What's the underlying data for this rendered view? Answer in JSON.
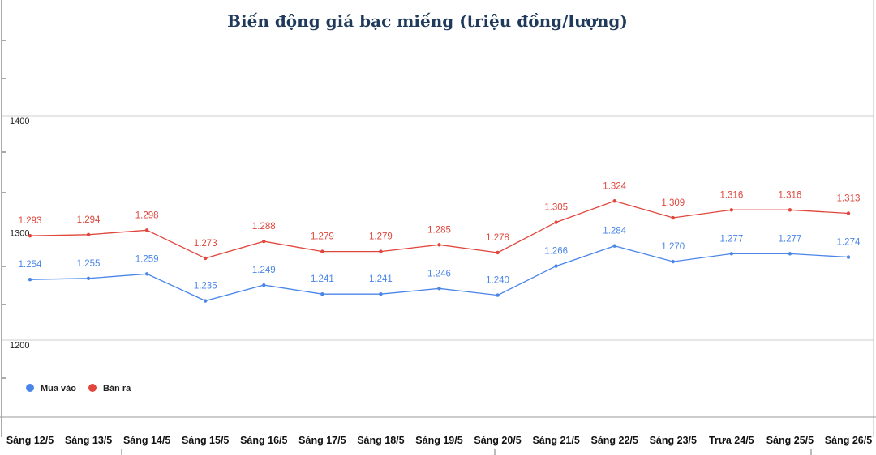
{
  "chart_data": {
    "type": "line",
    "title": "Biến động giá bạc miếng (triệu đồng/lượng)",
    "categories": [
      "Sáng 12/5",
      "Sáng 13/5",
      "Sáng 14/5",
      "Sáng 15/5",
      "Sáng 16/5",
      "Sáng 17/5",
      "Sáng 18/5",
      "Sáng 19/5",
      "Sáng 20/5",
      "Sáng 21/5",
      "Sáng 22/5",
      "Sáng 23/5",
      "Trưa 24/5",
      "Sáng 25/5",
      "Sáng 26/5"
    ],
    "series": [
      {
        "name": "Mua vào",
        "color": "#4a86e8",
        "values": [
          1254,
          1255,
          1259,
          1235,
          1249,
          1241,
          1241,
          1246,
          1240,
          1266,
          1284,
          1270,
          1277,
          1277,
          1274
        ],
        "labels": [
          "1.254",
          "1.255",
          "1.259",
          "1.235",
          "1.249",
          "1.241",
          "1.241",
          "1.246",
          "1.240",
          "1.266",
          "1.284",
          "1.270",
          "1.277",
          "1.277",
          "1.274"
        ]
      },
      {
        "name": "Bán ra",
        "color": "#e0463c",
        "values": [
          1293,
          1294,
          1298,
          1273,
          1288,
          1279,
          1279,
          1285,
          1278,
          1305,
          1324,
          1309,
          1316,
          1316,
          1313
        ],
        "labels": [
          "1.293",
          "1.294",
          "1.298",
          "1.273",
          "1.288",
          "1.279",
          "1.279",
          "1.285",
          "1.278",
          "1.305",
          "1.324",
          "1.309",
          "1.316",
          "1.316",
          "1.313"
        ]
      }
    ],
    "yticks": [
      "1200",
      "1300",
      "1400"
    ],
    "ylim": [
      1200,
      1400
    ],
    "grid": true,
    "legend": "bottom-left"
  }
}
